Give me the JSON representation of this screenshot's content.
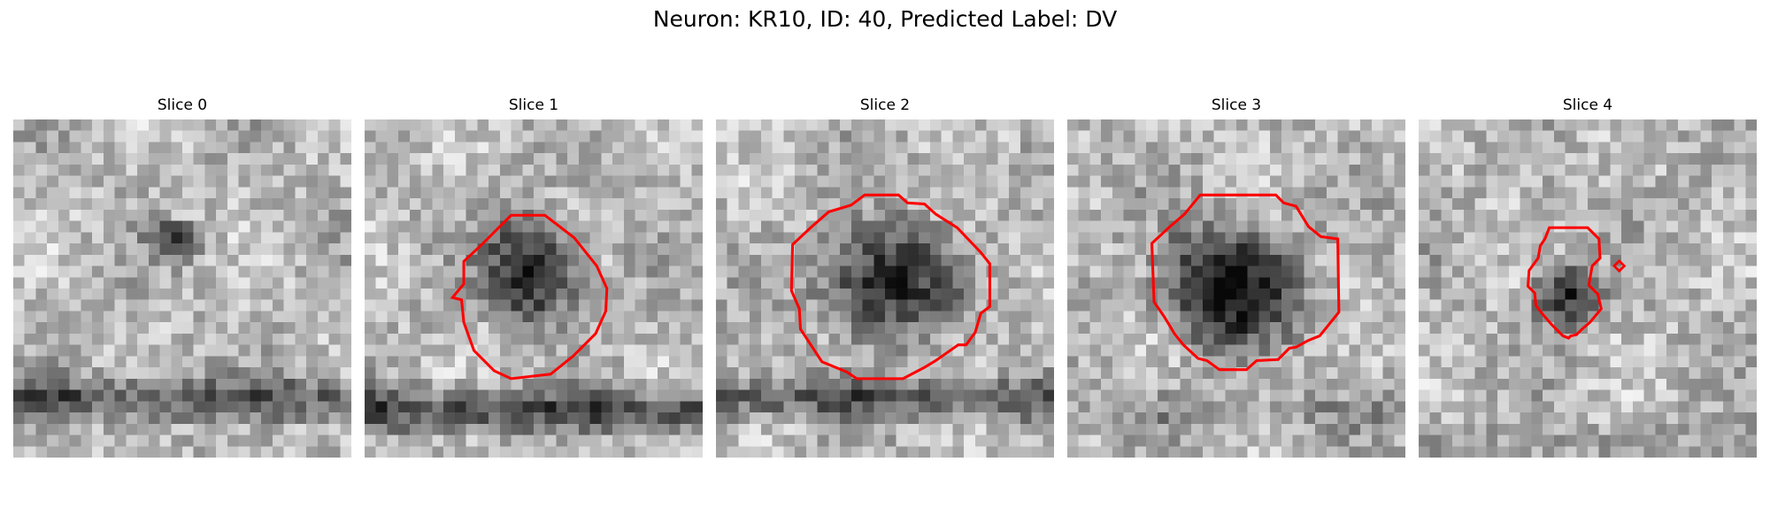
{
  "figure": {
    "title": "Neuron: KR10, ID: 40, Predicted Label: DV"
  },
  "panels": [
    {
      "title": "Slice 0",
      "has_contour": false,
      "seed": 11,
      "blob_strength": 0.45,
      "band_strength": 0.55
    },
    {
      "title": "Slice 1",
      "has_contour": true,
      "seed": 23,
      "blob_strength": 0.55,
      "band_strength": 0.65
    },
    {
      "title": "Slice 2",
      "has_contour": true,
      "seed": 37,
      "blob_strength": 0.55,
      "band_strength": 0.55
    },
    {
      "title": "Slice 3",
      "has_contour": true,
      "seed": 51,
      "blob_strength": 0.6,
      "band_strength": 0.2
    },
    {
      "title": "Slice 4",
      "has_contour": true,
      "seed": 67,
      "blob_strength": 0.5,
      "band_strength": 0.1
    }
  ],
  "colors": {
    "contour": "#ff0000",
    "background": "#ffffff"
  }
}
